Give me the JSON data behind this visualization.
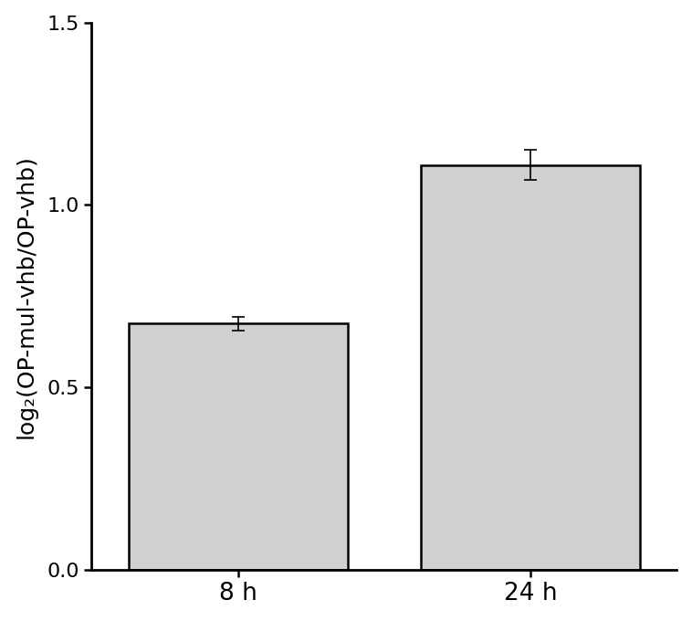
{
  "categories": [
    "8 h",
    "24 h"
  ],
  "values": [
    0.675,
    1.11
  ],
  "errors": [
    0.018,
    0.042
  ],
  "bar_color": "#d0d0d0",
  "bar_edgecolor": "#000000",
  "ylabel": "log₂(OP-mul-vhb/OP-vhb)",
  "ylim": [
    0.0,
    1.5
  ],
  "yticks": [
    0.0,
    0.5,
    1.0,
    1.5
  ],
  "background_color": "#ffffff",
  "bar_width": 0.75,
  "bar_positions": [
    0.5,
    1.5
  ],
  "xlim": [
    0.0,
    2.0
  ],
  "error_capsize": 5,
  "error_linewidth": 1.2,
  "ylabel_fontsize": 18,
  "tick_fontsize": 16,
  "xtick_fontsize": 19,
  "spine_linewidth": 2.0
}
